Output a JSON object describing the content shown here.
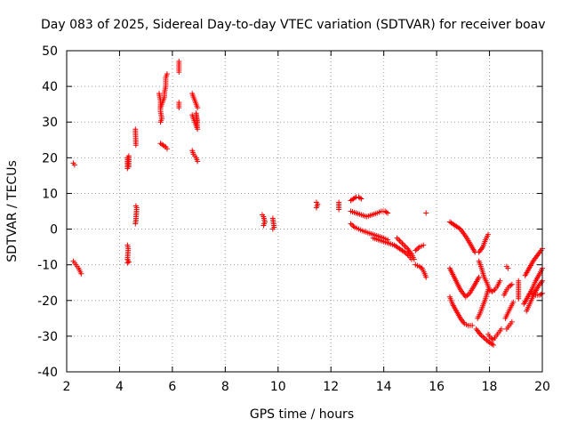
{
  "chart_data": {
    "type": "scatter",
    "title": "Day 083 of 2025, Sidereal Day-to-day VTEC variation (SDTVAR) for receiver boav",
    "xlabel": "GPS time / hours",
    "ylabel": "SDTVAR / TECUs",
    "xlim": [
      2,
      20
    ],
    "ylim": [
      -40,
      50
    ],
    "xticks": [
      2,
      4,
      6,
      8,
      10,
      12,
      14,
      16,
      18,
      20
    ],
    "yticks": [
      -40,
      -30,
      -20,
      -10,
      0,
      10,
      20,
      30,
      40,
      50
    ],
    "grid": true,
    "marker": "plus",
    "color": "#ff0000",
    "series": [
      {
        "name": "SDTVAR",
        "segments": [
          [
            [
              2.25,
              18.5
            ],
            [
              2.3,
              18.0
            ]
          ],
          [
            [
              2.25,
              -9.0
            ],
            [
              2.35,
              -10.0
            ],
            [
              2.45,
              -11.0
            ],
            [
              2.55,
              -12.5
            ]
          ],
          [
            [
              4.3,
              20.0
            ],
            [
              4.3,
              19.0
            ],
            [
              4.3,
              18.0
            ],
            [
              4.3,
              17.0
            ],
            [
              4.35,
              20.5
            ],
            [
              4.35,
              18.5
            ],
            [
              4.35,
              17.5
            ]
          ],
          [
            [
              4.3,
              -4.5
            ],
            [
              4.33,
              -5.5
            ],
            [
              4.3,
              -8.5
            ],
            [
              4.35,
              -9.2
            ],
            [
              4.3,
              -9.5
            ]
          ],
          [
            [
              4.6,
              28.0
            ],
            [
              4.62,
              23.5
            ]
          ],
          [
            [
              4.62,
              6.5
            ],
            [
              4.65,
              6.0
            ],
            [
              4.62,
              2.5
            ],
            [
              4.6,
              1.5
            ]
          ],
          [
            [
              5.55,
              34.0
            ],
            [
              5.6,
              35.0
            ],
            [
              5.65,
              36.0
            ],
            [
              5.7,
              37.0
            ],
            [
              5.7,
              38.0
            ],
            [
              5.72,
              39.0
            ],
            [
              5.75,
              40.0
            ],
            [
              5.75,
              41.5
            ],
            [
              5.75,
              42.5
            ],
            [
              5.8,
              43.5
            ]
          ],
          [
            [
              5.5,
              38.0
            ],
            [
              5.55,
              36.0
            ],
            [
              5.55,
              33.0
            ],
            [
              5.6,
              31.0
            ],
            [
              5.55,
              30.0
            ]
          ],
          [
            [
              5.55,
              24.0
            ],
            [
              5.65,
              23.5
            ],
            [
              5.75,
              23.0
            ],
            [
              5.8,
              22.5
            ]
          ],
          [
            [
              6.25,
              47.0
            ],
            [
              6.25,
              44.0
            ]
          ],
          [
            [
              6.25,
              35.5
            ],
            [
              6.25,
              34.0
            ]
          ],
          [
            [
              6.75,
              38.0
            ],
            [
              6.8,
              37.0
            ],
            [
              6.85,
              36.0
            ],
            [
              6.9,
              35.0
            ],
            [
              6.95,
              34.0
            ]
          ],
          [
            [
              6.75,
              32.0
            ],
            [
              6.8,
              31.0
            ],
            [
              6.85,
              30.0
            ],
            [
              6.9,
              29.0
            ],
            [
              6.95,
              28.0
            ],
            [
              6.9,
              32.5
            ],
            [
              6.95,
              30.0
            ]
          ],
          [
            [
              6.75,
              22.0
            ],
            [
              6.8,
              21.0
            ],
            [
              6.85,
              20.5
            ],
            [
              6.9,
              20.0
            ],
            [
              6.95,
              19.0
            ]
          ],
          [
            [
              9.4,
              4.0
            ],
            [
              9.45,
              3.5
            ],
            [
              9.5,
              2.0
            ],
            [
              9.45,
              1.0
            ]
          ],
          [
            [
              9.8,
              3.0
            ],
            [
              9.82,
              2.0
            ],
            [
              9.85,
              0.5
            ],
            [
              9.8,
              0.0
            ]
          ],
          [
            [
              11.45,
              7.5
            ],
            [
              11.5,
              7.0
            ],
            [
              11.45,
              6.0
            ]
          ],
          [
            [
              12.3,
              7.5
            ],
            [
              12.3,
              5.5
            ]
          ],
          [
            [
              12.75,
              8.0
            ],
            [
              12.85,
              8.5
            ],
            [
              12.95,
              9.0
            ],
            [
              13.05,
              9.0
            ],
            [
              13.15,
              8.5
            ]
          ],
          [
            [
              12.75,
              5.0
            ],
            [
              12.95,
              4.5
            ],
            [
              13.15,
              4.0
            ],
            [
              13.35,
              3.5
            ],
            [
              13.55,
              4.0
            ],
            [
              13.75,
              4.5
            ],
            [
              13.9,
              5.0
            ],
            [
              14.05,
              5.0
            ],
            [
              14.15,
              4.5
            ]
          ],
          [
            [
              12.75,
              1.5
            ],
            [
              12.9,
              0.5
            ],
            [
              13.05,
              0.0
            ],
            [
              13.2,
              -0.5
            ],
            [
              13.4,
              -1.0
            ],
            [
              13.6,
              -1.5
            ],
            [
              13.8,
              -2.0
            ],
            [
              14.0,
              -2.5
            ],
            [
              14.15,
              -3.0
            ]
          ],
          [
            [
              13.6,
              -2.5
            ],
            [
              13.8,
              -3.0
            ],
            [
              14.0,
              -3.5
            ],
            [
              14.2,
              -4.0
            ],
            [
              14.4,
              -4.5
            ],
            [
              14.6,
              -5.5
            ],
            [
              14.8,
              -6.5
            ],
            [
              14.95,
              -7.5
            ],
            [
              15.05,
              -8.5
            ]
          ],
          [
            [
              14.5,
              -2.5
            ],
            [
              14.7,
              -4.0
            ],
            [
              14.9,
              -5.5
            ],
            [
              15.05,
              -7.0
            ],
            [
              15.15,
              -8.5
            ]
          ],
          [
            [
              15.2,
              -6.0
            ],
            [
              15.35,
              -5.0
            ],
            [
              15.5,
              -4.5
            ]
          ],
          [
            [
              15.6,
              4.5
            ]
          ],
          [
            [
              15.2,
              -10.0
            ],
            [
              15.35,
              -10.5
            ],
            [
              15.45,
              -11.0
            ],
            [
              15.55,
              -12.5
            ],
            [
              15.6,
              -13.5
            ]
          ],
          [
            [
              16.5,
              2.0
            ],
            [
              16.7,
              1.0
            ],
            [
              16.9,
              0.0
            ],
            [
              17.1,
              -2.0
            ],
            [
              17.3,
              -4.5
            ],
            [
              17.45,
              -6.5
            ]
          ],
          [
            [
              16.5,
              -11.0
            ],
            [
              16.7,
              -14.0
            ],
            [
              16.9,
              -17.0
            ],
            [
              17.1,
              -19.0
            ],
            [
              17.25,
              -18.0
            ],
            [
              17.45,
              -15.5
            ],
            [
              17.6,
              -13.5
            ]
          ],
          [
            [
              16.5,
              -19.0
            ],
            [
              16.6,
              -21.0
            ],
            [
              16.75,
              -23.0
            ],
            [
              16.9,
              -25.0
            ],
            [
              17.05,
              -26.5
            ],
            [
              17.2,
              -27.0
            ],
            [
              17.35,
              -27.0
            ]
          ],
          [
            [
              17.6,
              -9.0
            ],
            [
              17.7,
              -11.0
            ],
            [
              17.8,
              -13.5
            ],
            [
              17.9,
              -15.0
            ],
            [
              18.0,
              -17.0
            ],
            [
              18.1,
              -17.5
            ],
            [
              18.2,
              -17.0
            ],
            [
              18.3,
              -16.0
            ],
            [
              18.4,
              -14.5
            ]
          ],
          [
            [
              17.55,
              -25.0
            ],
            [
              17.65,
              -23.5
            ],
            [
              17.75,
              -21.5
            ],
            [
              17.85,
              -19.5
            ],
            [
              17.95,
              -17.0
            ]
          ],
          [
            [
              17.6,
              -6.5
            ],
            [
              17.75,
              -5.0
            ],
            [
              17.85,
              -3.0
            ],
            [
              17.95,
              -1.5
            ]
          ],
          [
            [
              17.5,
              -28.0
            ],
            [
              17.65,
              -29.5
            ],
            [
              17.8,
              -30.5
            ],
            [
              17.95,
              -31.5
            ],
            [
              18.05,
              -32.0
            ],
            [
              18.15,
              -32.5
            ]
          ],
          [
            [
              17.95,
              -29.5
            ],
            [
              18.05,
              -30.5
            ],
            [
              18.15,
              -31.0
            ],
            [
              18.25,
              -30.0
            ],
            [
              18.35,
              -29.0
            ],
            [
              18.45,
              -28.0
            ]
          ],
          [
            [
              18.55,
              -18.5
            ],
            [
              18.65,
              -17.0
            ],
            [
              18.75,
              -16.0
            ],
            [
              18.85,
              -15.5
            ]
          ],
          [
            [
              18.65,
              -10.5
            ],
            [
              18.7,
              -11.0
            ]
          ],
          [
            [
              18.6,
              -25.0
            ],
            [
              18.7,
              -23.5
            ],
            [
              18.8,
              -22.0
            ],
            [
              18.9,
              -20.5
            ]
          ],
          [
            [
              18.65,
              -28.0
            ],
            [
              18.75,
              -27.0
            ],
            [
              18.85,
              -26.0
            ]
          ],
          [
            [
              19.1,
              -14.5
            ],
            [
              19.1,
              -19.5
            ]
          ],
          [
            [
              19.3,
              -21.0
            ],
            [
              19.45,
              -19.0
            ],
            [
              19.6,
              -17.0
            ],
            [
              19.75,
              -14.5
            ],
            [
              19.9,
              -12.5
            ],
            [
              20.0,
              -11.0
            ]
          ],
          [
            [
              19.35,
              -13.0
            ],
            [
              19.5,
              -11.0
            ],
            [
              19.65,
              -9.0
            ],
            [
              19.8,
              -7.5
            ],
            [
              19.95,
              -6.0
            ],
            [
              20.0,
              -5.5
            ]
          ],
          [
            [
              19.4,
              -23.0
            ],
            [
              19.55,
              -20.5
            ],
            [
              19.7,
              -18.0
            ],
            [
              19.85,
              -16.0
            ],
            [
              20.0,
              -14.5
            ]
          ],
          [
            [
              19.6,
              -18.0
            ],
            [
              19.75,
              -18.5
            ],
            [
              19.9,
              -18.5
            ],
            [
              20.0,
              -18.0
            ]
          ]
        ]
      }
    ]
  }
}
